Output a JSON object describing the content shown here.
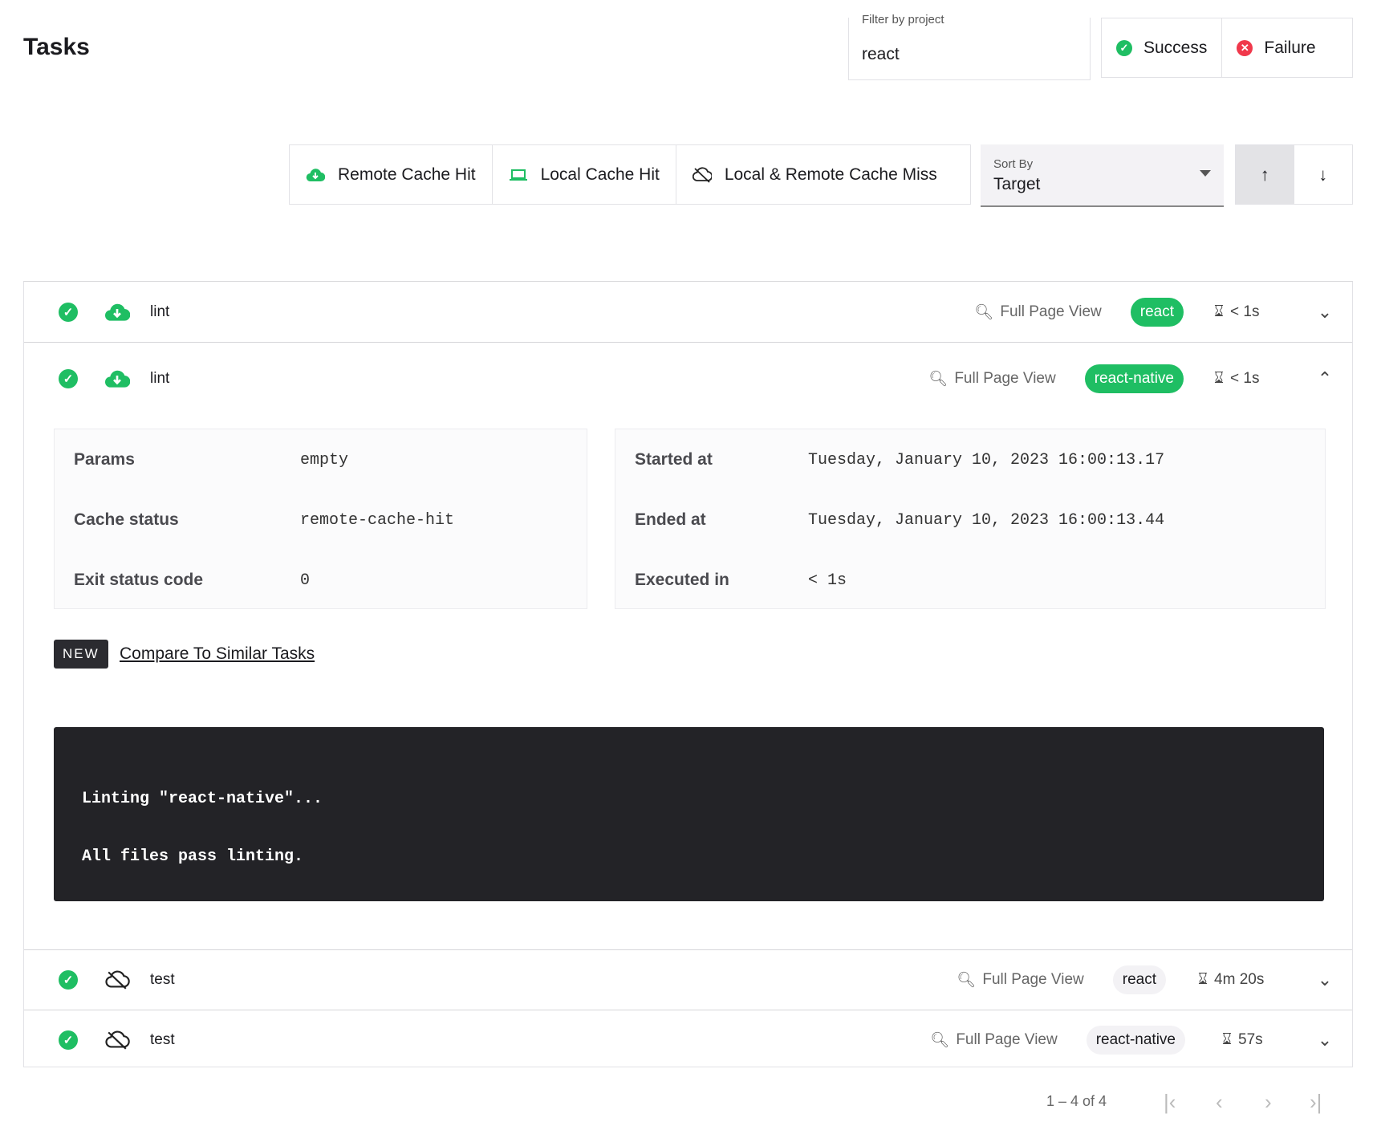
{
  "header": {
    "title": "Tasks",
    "filter": {
      "label": "Filter by project",
      "value": "react"
    },
    "status_filters": [
      {
        "label": "Success",
        "icon": "check-circle-icon",
        "color": "#1fbe63"
      },
      {
        "label": "Failure",
        "icon": "x-circle-icon",
        "color": "#f0384b"
      }
    ]
  },
  "cache_filters": [
    {
      "label": "Remote Cache Hit",
      "icon": "cloud-download-icon"
    },
    {
      "label": "Local Cache Hit",
      "icon": "laptop-icon"
    },
    {
      "label": "Local & Remote Cache Miss",
      "icon": "cloud-off-icon"
    }
  ],
  "sort": {
    "label": "Sort By",
    "value": "Target",
    "direction": "ascending"
  },
  "tasks": [
    {
      "name": "lint",
      "cache": "remote-cache-hit",
      "project": "react",
      "duration": "< 1s",
      "expanded": false,
      "full_page": "Full Page View"
    },
    {
      "name": "lint",
      "cache": "remote-cache-hit",
      "project": "react-native",
      "duration": "< 1s",
      "expanded": true,
      "full_page": "Full Page View"
    },
    {
      "name": "test",
      "cache": "miss",
      "project": "react",
      "duration": "4m 20s",
      "expanded": false,
      "full_page": "Full Page View"
    },
    {
      "name": "test",
      "cache": "miss",
      "project": "react-native",
      "duration": "57s",
      "expanded": false,
      "full_page": "Full Page View"
    }
  ],
  "details": {
    "left": [
      {
        "k": "Params",
        "v": "empty"
      },
      {
        "k": "Cache status",
        "v": "remote-cache-hit"
      },
      {
        "k": "Exit status code",
        "v": "0"
      }
    ],
    "right": [
      {
        "k": "Started at",
        "v": "Tuesday, January 10, 2023 16:00:13.17"
      },
      {
        "k": "Ended at",
        "v": "Tuesday, January 10, 2023 16:00:13.44"
      },
      {
        "k": "Executed in",
        "v": "< 1s"
      }
    ],
    "new_badge": "NEW",
    "compare_link": "Compare To Similar Tasks",
    "terminal": [
      "Linting \"react-native\"...",
      "All files pass linting."
    ]
  },
  "pagination": {
    "range": "1 – 4 of 4"
  },
  "colors": {
    "success": "#1fbe63",
    "failure": "#f0384b",
    "terminal_bg": "#232327"
  }
}
